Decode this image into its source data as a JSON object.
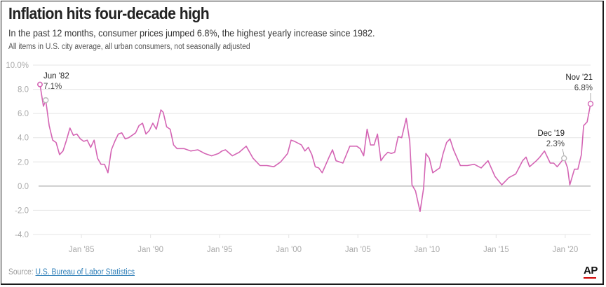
{
  "header": {
    "title": "Inflation hits four-decade high",
    "subtitle": "In the past 12 months, consumer prices jumped 6.8%, the highest yearly increase since 1982.",
    "note": "All items in U.S. city average, all urban consumers, not seasonally adjusted"
  },
  "footer": {
    "source_prefix": "Source: ",
    "source_name": "U.S. Bureau of Labor Statistics",
    "logo_text": "AP"
  },
  "colors": {
    "line": "#d465b4",
    "zero_line": "#999999",
    "grid": "#e4e4e4",
    "logo_bar": "#d00000"
  },
  "chart_data": {
    "type": "line",
    "title": "Inflation hits four-decade high",
    "xlabel": "",
    "ylabel": "",
    "ylim": [
      -4,
      10
    ],
    "xlim": [
      "1982-01",
      "2021-11"
    ],
    "grid": true,
    "y_ticks": [
      "10.0%",
      "8.0",
      "6.0",
      "4.0",
      "2.0",
      "0.0",
      "-2.0",
      "-4.0"
    ],
    "y_tick_values": [
      10,
      8,
      6,
      4,
      2,
      0,
      -2,
      -4
    ],
    "x_ticks": [
      "Jan '85",
      "Jan '90",
      "Jan '95",
      "Jan '00",
      "Jan '05",
      "Jan '10",
      "Jan '15",
      "Jan '20"
    ],
    "x_tick_values": [
      "1985-01",
      "1990-01",
      "1995-01",
      "2000-01",
      "2005-01",
      "2010-01",
      "2015-01",
      "2020-01"
    ],
    "series": [
      {
        "x": [
          "1982-01",
          "1982-04",
          "1982-06",
          "1982-09",
          "1982-12",
          "1983-03",
          "1983-06",
          "1983-09",
          "1983-12",
          "1984-03",
          "1984-06",
          "1984-09",
          "1984-12",
          "1985-03",
          "1985-06",
          "1985-09",
          "1985-12",
          "1986-03",
          "1986-06",
          "1986-09",
          "1986-12",
          "1987-03",
          "1987-06",
          "1987-09",
          "1987-12",
          "1988-03",
          "1988-06",
          "1988-09",
          "1988-12",
          "1989-03",
          "1989-06",
          "1989-09",
          "1989-12",
          "1990-03",
          "1990-06",
          "1990-10",
          "1990-12",
          "1991-03",
          "1991-06",
          "1991-09",
          "1991-12",
          "1992-06",
          "1992-12",
          "1993-06",
          "1993-12",
          "1994-06",
          "1994-12",
          "1995-03",
          "1995-06",
          "1995-12",
          "1996-06",
          "1996-12",
          "1997-06",
          "1997-12",
          "1998-06",
          "1998-12",
          "1999-06",
          "1999-12",
          "2000-03",
          "2000-06",
          "2000-12",
          "2001-03",
          "2001-06",
          "2001-09",
          "2001-12",
          "2002-03",
          "2002-06",
          "2002-12",
          "2003-03",
          "2003-06",
          "2003-12",
          "2004-06",
          "2004-12",
          "2005-03",
          "2005-06",
          "2005-09",
          "2005-12",
          "2006-03",
          "2006-06",
          "2006-09",
          "2006-12",
          "2007-03",
          "2007-06",
          "2007-09",
          "2007-12",
          "2008-03",
          "2008-07",
          "2008-10",
          "2008-12",
          "2009-03",
          "2009-07",
          "2009-10",
          "2009-12",
          "2010-03",
          "2010-06",
          "2010-12",
          "2011-03",
          "2011-06",
          "2011-09",
          "2011-12",
          "2012-06",
          "2012-12",
          "2013-06",
          "2013-12",
          "2014-06",
          "2014-12",
          "2015-06",
          "2015-12",
          "2016-06",
          "2016-12",
          "2017-03",
          "2017-06",
          "2017-12",
          "2018-03",
          "2018-07",
          "2018-12",
          "2019-03",
          "2019-06",
          "2019-12",
          "2020-03",
          "2020-05",
          "2020-09",
          "2020-12",
          "2021-03",
          "2021-05",
          "2021-08",
          "2021-11"
        ],
        "y": [
          8.4,
          6.6,
          7.1,
          5.0,
          3.8,
          3.6,
          2.6,
          2.9,
          3.8,
          4.8,
          4.2,
          4.3,
          3.9,
          3.7,
          3.8,
          3.2,
          3.8,
          2.3,
          1.8,
          1.8,
          1.1,
          3.0,
          3.7,
          4.3,
          4.4,
          3.9,
          4.0,
          4.2,
          4.4,
          5.0,
          5.2,
          4.3,
          4.6,
          5.2,
          4.7,
          6.3,
          6.1,
          4.9,
          4.7,
          3.4,
          3.1,
          3.1,
          2.9,
          3.0,
          2.7,
          2.5,
          2.7,
          2.9,
          3.0,
          2.5,
          2.8,
          3.3,
          2.3,
          1.7,
          1.7,
          1.6,
          2.0,
          2.7,
          3.8,
          3.7,
          3.4,
          2.9,
          3.2,
          2.6,
          1.6,
          1.5,
          1.1,
          2.4,
          3.0,
          2.1,
          1.9,
          3.3,
          3.3,
          3.1,
          2.5,
          4.7,
          3.4,
          3.4,
          4.3,
          2.1,
          2.5,
          2.8,
          2.7,
          2.8,
          4.1,
          4.0,
          5.6,
          3.7,
          0.1,
          -0.4,
          -2.1,
          -0.2,
          2.7,
          2.3,
          1.1,
          1.5,
          2.7,
          3.6,
          3.9,
          3.0,
          1.7,
          1.7,
          1.8,
          1.5,
          2.1,
          0.8,
          0.1,
          0.7,
          1.0,
          2.1,
          2.4,
          1.6,
          2.1,
          2.4,
          2.9,
          1.9,
          1.9,
          1.6,
          2.3,
          1.5,
          0.1,
          1.4,
          1.4,
          2.6,
          5.0,
          5.3,
          6.8
        ]
      }
    ],
    "annotations": [
      {
        "label": "Jun '82",
        "value": "7.1%",
        "x": "1982-06",
        "y": 7.1
      },
      {
        "label": "Dec '19",
        "value": "2.3%",
        "x": "2019-12",
        "y": 2.3
      },
      {
        "label": "Nov '21",
        "value": "6.8%",
        "x": "2021-11",
        "y": 6.8
      }
    ]
  }
}
